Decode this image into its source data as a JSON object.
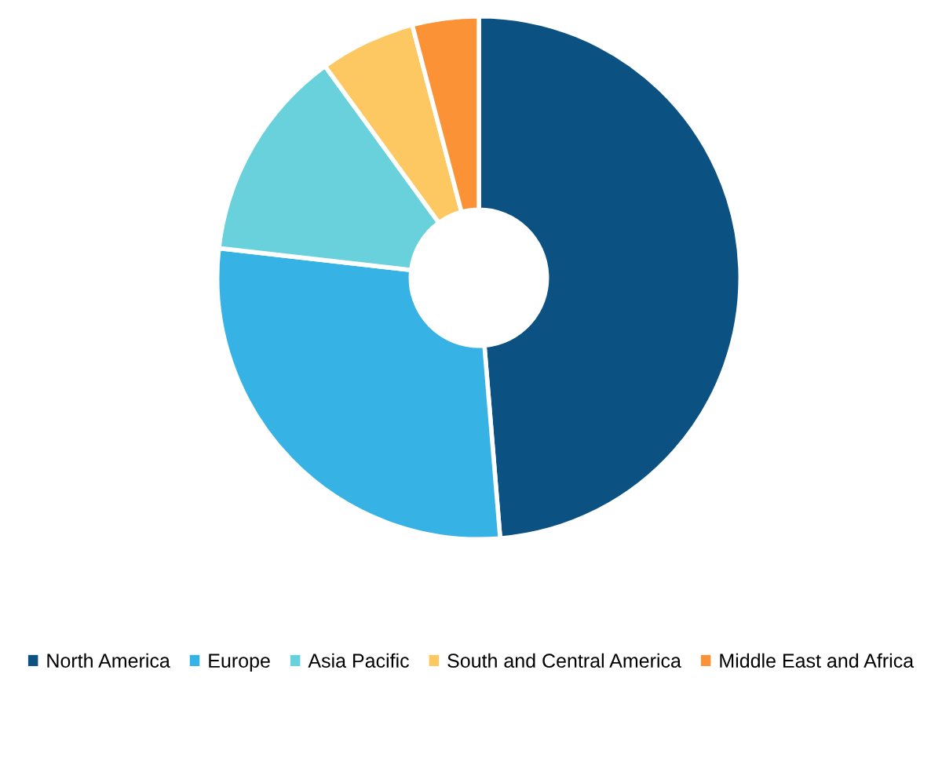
{
  "chart_data": {
    "type": "donut",
    "categories": [
      "North America",
      "Europe",
      "Asia Pacific",
      "South and Central America",
      "Middle East and Africa"
    ],
    "values": [
      48.7,
      28.1,
      13.2,
      5.9,
      4.1
    ],
    "colors": [
      "#0b5282",
      "#36b2e5",
      "#68d1db",
      "#fdc861",
      "#fb9235"
    ],
    "legend": "bottom"
  }
}
